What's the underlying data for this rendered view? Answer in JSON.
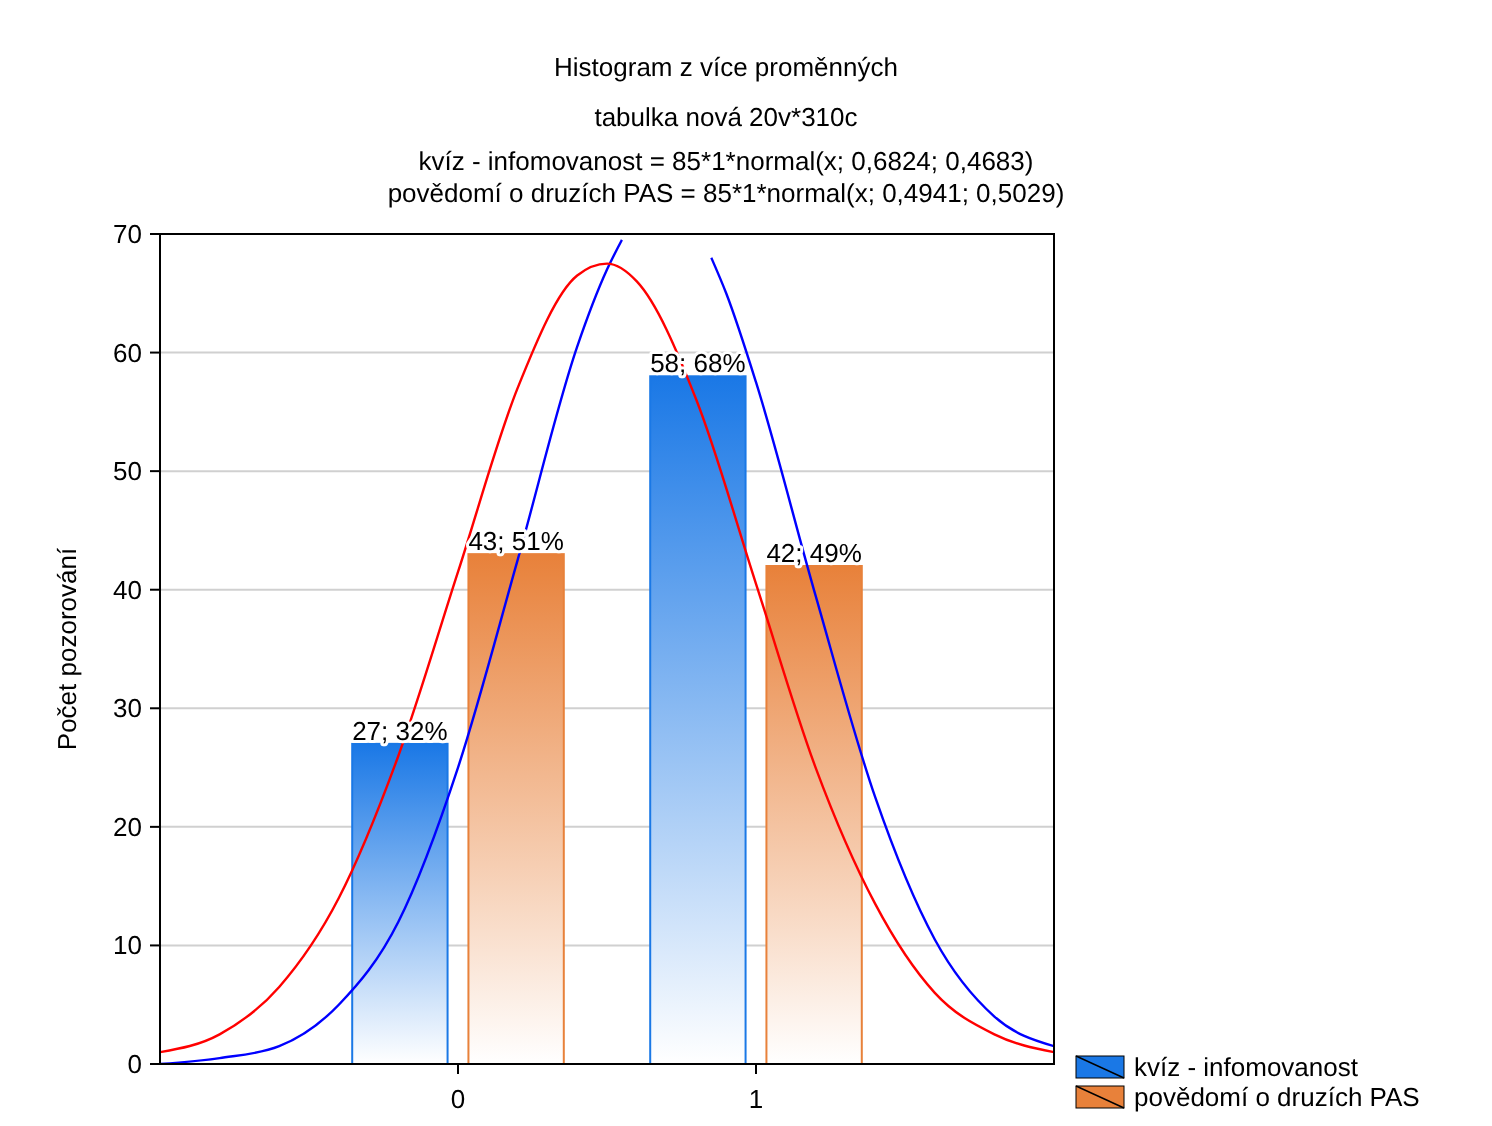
{
  "chart_data": {
    "type": "bar",
    "title": "Histogram z více proměnných",
    "subtitle": "tabulka nová 20v*310c",
    "annotations": [
      "kvíz - infomovanost = 85*1*normal(x; 0,6824; 0,4683)",
      "povědomí o druzích PAS = 85*1*normal(x; 0,4941; 0,5029)"
    ],
    "ylabel": "Počet pozorování",
    "x": [
      0,
      1
    ],
    "xlim": [
      -1,
      2
    ],
    "xticks": [
      0,
      1
    ],
    "ylim": [
      0,
      70
    ],
    "yticks": [
      0,
      10,
      20,
      30,
      40,
      50,
      60,
      70
    ],
    "grid": "y",
    "legend": "bottom right",
    "series": [
      {
        "name": "kvíz - infomovanost",
        "color": "#1a78e6",
        "values": [
          27,
          58
        ],
        "value_labels": [
          "27; 32%",
          "58; 68%"
        ]
      },
      {
        "name": "povědomí o druzích PAS",
        "color": "#e8813a",
        "values": [
          43,
          42
        ],
        "value_labels": [
          "43; 51%",
          "42; 49%"
        ]
      },
      {
        "type": "line",
        "color": "#0000ff",
        "x": [
          -1,
          -0.8,
          -0.6,
          -0.4,
          -0.2,
          0,
          0.2,
          0.4,
          0.5,
          0.55,
          0.6,
          0.8,
          0.85,
          0.9,
          1,
          1.2,
          1.4,
          1.6,
          1.8,
          2
        ],
        "values": [
          0,
          0.5,
          1.5,
          5,
          12,
          25,
          42.5,
          60.5,
          67,
          69.5,
          null,
          null,
          68,
          65,
          57.5,
          39.5,
          22.5,
          10.5,
          4,
          1.5
        ]
      },
      {
        "type": "line",
        "color": "#ff0000",
        "x": [
          -1,
          -0.8,
          -0.6,
          -0.4,
          -0.2,
          0,
          0.2,
          0.4,
          0.5,
          0.6,
          0.8,
          1,
          1.2,
          1.4,
          1.6,
          1.8,
          2
        ],
        "values": [
          1,
          2.5,
          6.5,
          14,
          26,
          41.5,
          57,
          66.5,
          67.5,
          66,
          56,
          40.5,
          25,
          13.5,
          6,
          2.5,
          1
        ]
      }
    ]
  }
}
